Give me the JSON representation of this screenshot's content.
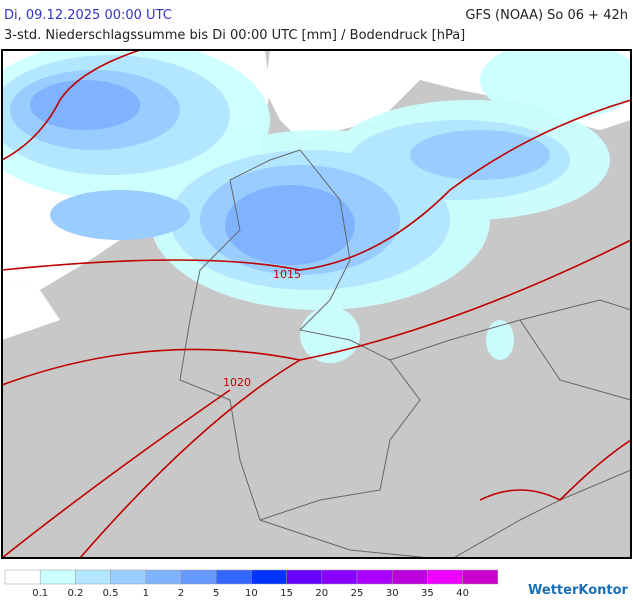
{
  "header": {
    "left_title": "Di, 09.12.2025 00:00 UTC",
    "right_title": "GFS (NOAA) So 06 + 42h",
    "subtitle": "3-std. Niederschlagssumme bis Di 00:00 UTC [mm] / Bodendruck [hPa]"
  },
  "map": {
    "isobar_labels": [
      "1015",
      "1020"
    ]
  },
  "legend": {
    "labels": [
      "0.1",
      "0.2",
      "0.5",
      "1",
      "2",
      "5",
      "10",
      "15",
      "20",
      "25",
      "30",
      "35",
      "40"
    ],
    "colors": [
      "#ffffff",
      "#ccffff",
      "#b3e6ff",
      "#99ccff",
      "#80b3ff",
      "#6699ff",
      "#3366ff",
      "#0033ff",
      "#6600ff",
      "#8800ff",
      "#aa00ff",
      "#bb00dd",
      "#ee00ff",
      "#cc00cc"
    ]
  },
  "logo": "WetterKontor"
}
